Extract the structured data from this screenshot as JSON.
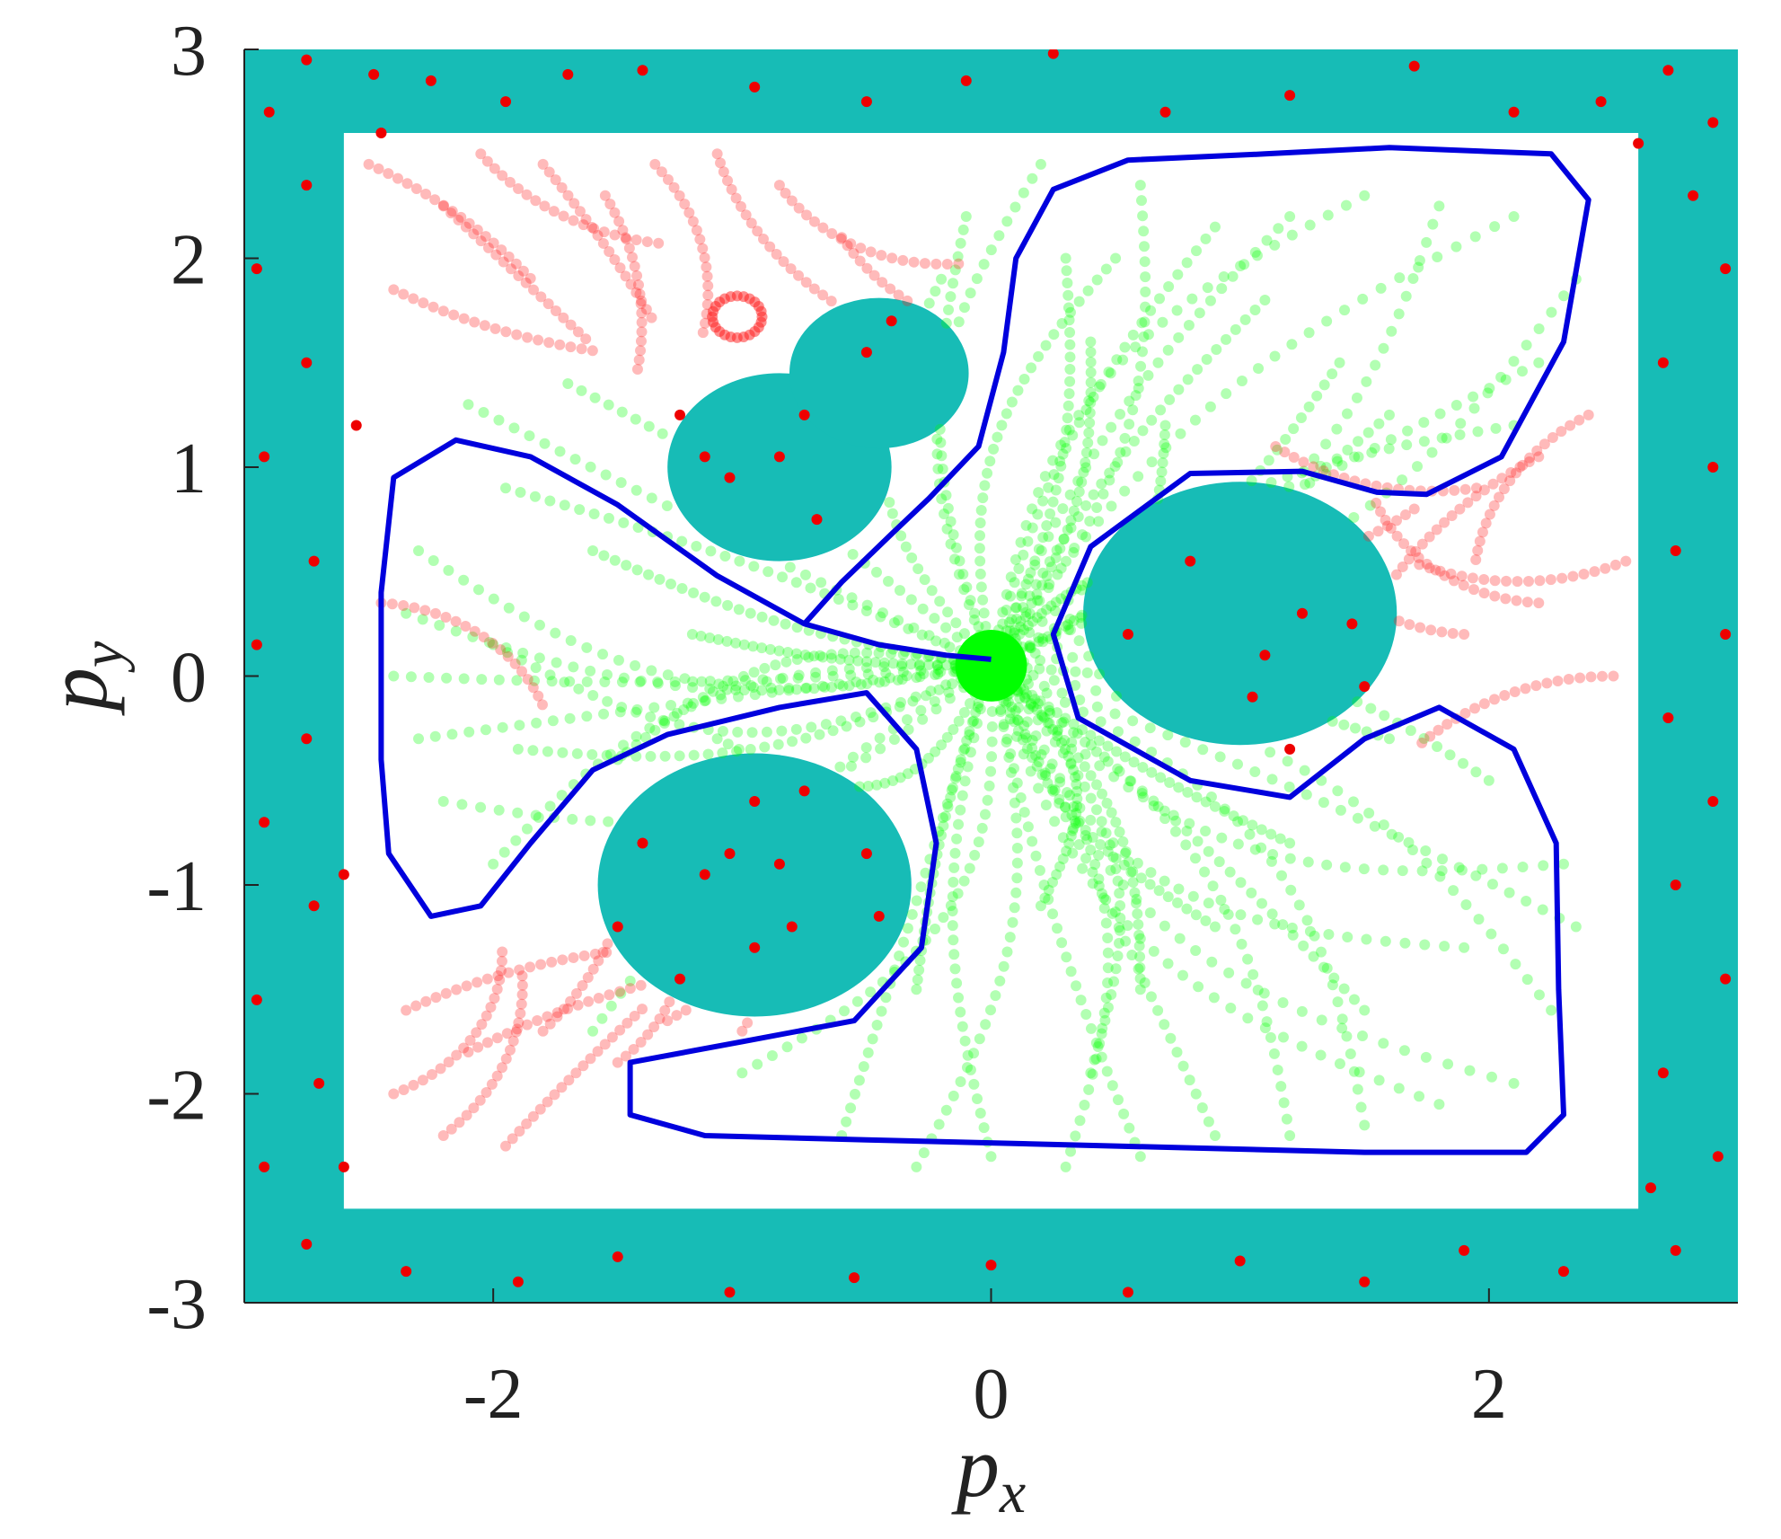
{
  "chart_data": {
    "type": "scatter",
    "title": "",
    "xlabel": "p",
    "xlabel_sub": "x",
    "ylabel": "p",
    "ylabel_sub": "y",
    "xlim": [
      -3,
      3
    ],
    "ylim": [
      -3,
      3
    ],
    "xticks": [
      -2,
      0,
      2
    ],
    "xtick_labels": [
      "-2",
      "0",
      "2"
    ],
    "yticks": [
      -3,
      -2,
      -1,
      0,
      1,
      2,
      3
    ],
    "ytick_labels": [
      "-3",
      "-2",
      "-1",
      "0",
      "1",
      "2",
      "3"
    ],
    "grid": false,
    "colors": {
      "obstacle": "#17bcb6",
      "safe": "#00ff00",
      "unsafe": "#ff1a1a",
      "point": "#ee0000",
      "boundary": "#0000dd"
    },
    "obstacles": {
      "outer_square_half_width": 3,
      "inner_free_region": {
        "x": [
          -2.6,
          2.6
        ],
        "y": [
          -2.55,
          2.6
        ]
      },
      "ellipses": [
        {
          "cx": 1.0,
          "cy": 0.3,
          "rx": 0.63,
          "ry": 0.63
        },
        {
          "cx": -0.95,
          "cy": -1.0,
          "rx": 0.63,
          "ry": 0.63
        },
        {
          "cx": -0.85,
          "cy": 1.0,
          "rx": 0.45,
          "ry": 0.45
        },
        {
          "cx": -0.45,
          "cy": 1.45,
          "rx": 0.36,
          "ry": 0.36
        }
      ]
    },
    "equilibrium": {
      "x": 0.0,
      "y": 0.05,
      "r": 0.16
    },
    "boundary_curve": [
      [
        0.0,
        0.08
      ],
      [
        -0.18,
        0.1
      ],
      [
        -0.45,
        0.15
      ],
      [
        -0.75,
        0.25
      ],
      [
        -1.1,
        0.48
      ],
      [
        -1.5,
        0.82
      ],
      [
        -1.85,
        1.05
      ],
      [
        -2.15,
        1.13
      ],
      [
        -2.4,
        0.95
      ],
      [
        -2.45,
        0.4
      ],
      [
        -2.45,
        -0.4
      ],
      [
        -2.42,
        -0.85
      ],
      [
        -2.25,
        -1.15
      ],
      [
        -2.05,
        -1.1
      ],
      [
        -1.85,
        -0.8
      ],
      [
        -1.6,
        -0.45
      ],
      [
        -1.3,
        -0.28
      ],
      [
        -0.85,
        -0.15
      ],
      [
        -0.5,
        -0.08
      ],
      [
        -0.3,
        -0.35
      ],
      [
        -0.22,
        -0.8
      ],
      [
        -0.28,
        -1.3
      ],
      [
        -0.55,
        -1.65
      ],
      [
        -1.0,
        -1.75
      ],
      [
        -1.45,
        -1.85
      ],
      [
        -1.45,
        -2.1
      ],
      [
        -1.15,
        -2.2
      ],
      [
        -0.5,
        -2.22
      ],
      [
        0.5,
        -2.25
      ],
      [
        1.5,
        -2.28
      ],
      [
        2.15,
        -2.28
      ],
      [
        2.3,
        -2.1
      ],
      [
        2.28,
        -1.5
      ],
      [
        2.27,
        -0.8
      ],
      [
        2.1,
        -0.35
      ],
      [
        1.8,
        -0.15
      ],
      [
        1.5,
        -0.3
      ],
      [
        1.2,
        -0.58
      ],
      [
        0.8,
        -0.5
      ],
      [
        0.35,
        -0.2
      ],
      [
        0.25,
        0.2
      ],
      [
        0.4,
        0.62
      ],
      [
        0.8,
        0.97
      ],
      [
        1.25,
        0.98
      ],
      [
        1.55,
        0.88
      ],
      [
        1.75,
        0.87
      ],
      [
        2.05,
        1.05
      ],
      [
        2.3,
        1.6
      ],
      [
        2.4,
        2.28
      ],
      [
        2.25,
        2.5
      ],
      [
        1.6,
        2.53
      ],
      [
        1.1,
        2.5
      ],
      [
        0.55,
        2.47
      ],
      [
        0.25,
        2.33
      ],
      [
        0.1,
        2.0
      ],
      [
        0.05,
        1.55
      ],
      [
        -0.05,
        1.1
      ],
      [
        -0.25,
        0.85
      ],
      [
        -0.4,
        0.68
      ],
      [
        -0.6,
        0.45
      ],
      [
        -0.75,
        0.25
      ],
      [
        -0.45,
        0.15
      ],
      [
        -0.18,
        0.1
      ],
      [
        0.0,
        0.08
      ]
    ],
    "safe_trajectory_starts": [
      [
        -2.1,
        1.3
      ],
      [
        -1.95,
        0.9
      ],
      [
        -2.3,
        0.6
      ],
      [
        -2.35,
        0.3
      ],
      [
        -2.4,
        0.0
      ],
      [
        -2.3,
        -0.3
      ],
      [
        -2.2,
        -0.6
      ],
      [
        -2.0,
        -0.9
      ],
      [
        -1.7,
        1.4
      ],
      [
        -1.6,
        0.6
      ],
      [
        -1.9,
        -0.35
      ],
      [
        -1.5,
        -0.4
      ],
      [
        -1.6,
        -1.7
      ],
      [
        -1.0,
        -1.9
      ],
      [
        -0.6,
        -2.2
      ],
      [
        -0.3,
        -2.35
      ],
      [
        0.0,
        -2.3
      ],
      [
        0.3,
        -2.35
      ],
      [
        0.6,
        -2.3
      ],
      [
        0.9,
        -2.2
      ],
      [
        1.2,
        -2.2
      ],
      [
        1.5,
        -2.15
      ],
      [
        1.8,
        -2.05
      ],
      [
        2.1,
        -1.95
      ],
      [
        2.25,
        -1.6
      ],
      [
        2.35,
        -1.2
      ],
      [
        2.3,
        -0.9
      ],
      [
        2.0,
        -0.5
      ],
      [
        1.6,
        -0.3
      ],
      [
        1.2,
        -0.8
      ],
      [
        0.9,
        -1.2
      ],
      [
        0.6,
        -1.5
      ],
      [
        0.4,
        -1.9
      ],
      [
        1.9,
        -1.3
      ],
      [
        1.5,
        -1.6
      ],
      [
        0.2,
        -1.1
      ],
      [
        -0.3,
        -1.5
      ],
      [
        -0.1,
        2.2
      ],
      [
        0.2,
        2.45
      ],
      [
        0.6,
        2.35
      ],
      [
        0.9,
        2.15
      ],
      [
        1.2,
        2.2
      ],
      [
        1.5,
        2.3
      ],
      [
        1.8,
        2.25
      ],
      [
        2.1,
        2.2
      ],
      [
        2.35,
        1.9
      ],
      [
        2.2,
        1.5
      ],
      [
        2.1,
        1.2
      ],
      [
        1.6,
        1.25
      ],
      [
        1.1,
        1.8
      ],
      [
        0.7,
        1.2
      ],
      [
        0.4,
        1.6
      ],
      [
        -0.2,
        1.9
      ],
      [
        0.5,
        2.0
      ],
      [
        -1.2,
        0.2
      ],
      [
        -2.0,
        0.15
      ],
      [
        -1.1,
        -0.3
      ],
      [
        0.7,
        0.6
      ],
      [
        1.4,
        1.5
      ],
      [
        0.3,
        2.0
      ]
    ],
    "unsafe_trajectory_starts": [
      [
        -2.5,
        2.45
      ],
      [
        -2.2,
        2.25
      ],
      [
        -2.05,
        2.5
      ],
      [
        -1.8,
        2.45
      ],
      [
        -1.55,
        2.3
      ],
      [
        -1.35,
        2.45
      ],
      [
        -1.1,
        2.5
      ],
      [
        -0.85,
        2.35
      ],
      [
        -0.6,
        2.1
      ],
      [
        -2.4,
        1.85
      ],
      [
        -2.45,
        0.35
      ],
      [
        -2.35,
        -1.6
      ],
      [
        -2.1,
        -1.8
      ],
      [
        -1.8,
        -1.7
      ],
      [
        -1.5,
        -1.85
      ],
      [
        -1.3,
        -1.65
      ],
      [
        -1.0,
        -1.7
      ],
      [
        -2.4,
        -2.0
      ],
      [
        -2.2,
        -2.2
      ],
      [
        -1.95,
        -2.25
      ],
      [
        1.45,
        0.6
      ],
      [
        1.7,
        0.8
      ],
      [
        1.95,
        0.9
      ],
      [
        2.2,
        1.05
      ],
      [
        2.4,
        1.25
      ],
      [
        1.6,
        0.3
      ],
      [
        1.9,
        0.2
      ],
      [
        2.2,
        0.35
      ],
      [
        2.5,
        0.0
      ],
      [
        2.55,
        0.55
      ]
    ],
    "loop_marker": {
      "cx": -1.02,
      "cy": 1.72,
      "r": 0.1
    },
    "red_points": [
      [
        -2.75,
        2.95
      ],
      [
        -2.48,
        2.88
      ],
      [
        -2.25,
        2.85
      ],
      [
        -1.95,
        2.75
      ],
      [
        -1.7,
        2.88
      ],
      [
        -1.4,
        2.9
      ],
      [
        -0.95,
        2.82
      ],
      [
        -0.5,
        2.75
      ],
      [
        -0.1,
        2.85
      ],
      [
        0.25,
        2.98
      ],
      [
        0.7,
        2.7
      ],
      [
        1.2,
        2.78
      ],
      [
        1.7,
        2.92
      ],
      [
        2.1,
        2.7
      ],
      [
        2.45,
        2.75
      ],
      [
        2.72,
        2.9
      ],
      [
        2.9,
        2.65
      ],
      [
        2.82,
        2.3
      ],
      [
        2.95,
        1.95
      ],
      [
        2.7,
        1.5
      ],
      [
        2.9,
        1.0
      ],
      [
        2.75,
        0.6
      ],
      [
        2.95,
        0.2
      ],
      [
        2.72,
        -0.2
      ],
      [
        2.9,
        -0.6
      ],
      [
        2.75,
        -1.0
      ],
      [
        2.95,
        -1.45
      ],
      [
        2.7,
        -1.9
      ],
      [
        2.92,
        -2.3
      ],
      [
        2.75,
        -2.75
      ],
      [
        2.3,
        -2.85
      ],
      [
        1.9,
        -2.75
      ],
      [
        1.5,
        -2.9
      ],
      [
        1.0,
        -2.8
      ],
      [
        0.55,
        -2.95
      ],
      [
        0.0,
        -2.82
      ],
      [
        -0.55,
        -2.88
      ],
      [
        -1.05,
        -2.95
      ],
      [
        -1.5,
        -2.78
      ],
      [
        -1.9,
        -2.9
      ],
      [
        -2.35,
        -2.85
      ],
      [
        -2.75,
        -2.72
      ],
      [
        -2.92,
        -2.35
      ],
      [
        -2.7,
        -1.95
      ],
      [
        -2.95,
        -1.55
      ],
      [
        -2.72,
        -1.1
      ],
      [
        -2.92,
        -0.7
      ],
      [
        -2.75,
        -0.3
      ],
      [
        -2.95,
        0.15
      ],
      [
        -2.72,
        0.55
      ],
      [
        -2.92,
        1.05
      ],
      [
        -2.75,
        1.5
      ],
      [
        -2.95,
        1.95
      ],
      [
        -2.75,
        2.35
      ],
      [
        -2.9,
        2.7
      ],
      [
        -2.45,
        2.6
      ],
      [
        -2.6,
        -2.35
      ],
      [
        2.65,
        -2.45
      ],
      [
        2.6,
        2.55
      ],
      [
        -2.55,
        1.2
      ],
      [
        -2.6,
        -0.95
      ],
      [
        -1.25,
        1.25
      ],
      [
        -1.15,
        1.05
      ],
      [
        -1.05,
        0.95
      ],
      [
        -0.85,
        1.05
      ],
      [
        -0.75,
        1.25
      ],
      [
        -0.5,
        1.55
      ],
      [
        -0.4,
        1.7
      ],
      [
        -0.7,
        0.75
      ],
      [
        1.1,
        0.1
      ],
      [
        1.25,
        0.3
      ],
      [
        1.45,
        0.25
      ],
      [
        0.55,
        0.2
      ],
      [
        1.05,
        -0.1
      ],
      [
        0.8,
        0.55
      ],
      [
        1.5,
        -0.05
      ],
      [
        1.2,
        -0.35
      ],
      [
        -1.4,
        -0.8
      ],
      [
        -1.05,
        -0.85
      ],
      [
        -0.85,
        -0.9
      ],
      [
        -0.95,
        -0.6
      ],
      [
        -1.15,
        -0.95
      ],
      [
        -0.5,
        -0.85
      ],
      [
        -1.25,
        -1.45
      ],
      [
        -0.95,
        -1.3
      ],
      [
        -0.8,
        -1.2
      ],
      [
        -1.5,
        -1.2
      ],
      [
        -0.45,
        -1.15
      ],
      [
        -0.75,
        -0.55
      ]
    ]
  }
}
